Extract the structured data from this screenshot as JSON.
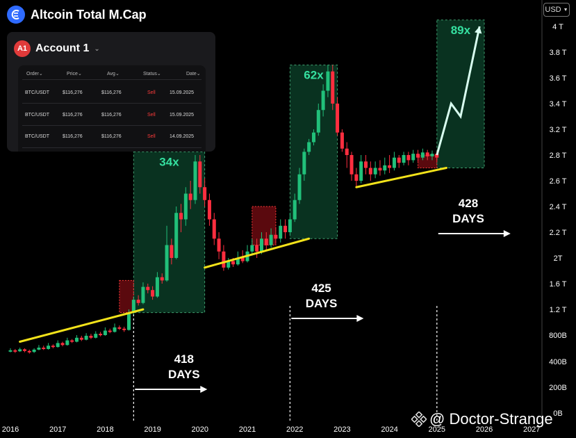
{
  "header": {
    "title": "Altcoin Total M.Cap",
    "logo_icon": "coin-logo-icon"
  },
  "currency_selector": {
    "value": "USD"
  },
  "account_panel": {
    "badge": "A1",
    "account_name": "Account 1",
    "columns": [
      "Order",
      "Price",
      "Avg",
      "Status",
      "Date"
    ],
    "rows": [
      {
        "order": "BTC/USDT",
        "price": "$116,276",
        "avg": "$116,276",
        "status": "Sell",
        "date": "15.09.2025"
      },
      {
        "order": "BTC/USDT",
        "price": "$116,276",
        "avg": "$116,276",
        "status": "Sell",
        "date": "15.09.2025"
      },
      {
        "order": "BTC/USDT",
        "price": "$116,276",
        "avg": "$116,276",
        "status": "Sell",
        "date": "14.09.2025"
      }
    ]
  },
  "watermark": {
    "text": "@ Doctor-Strange",
    "icon": "binance-logo-icon"
  },
  "chart_data": {
    "type": "candlestick",
    "title": "Altcoin Total M.Cap",
    "y_scale": "log",
    "y_unit": "USD",
    "y_ticks": [
      {
        "label": "4 T",
        "value": 4000
      },
      {
        "label": "3.8 T",
        "value": 3800
      },
      {
        "label": "3.6 T",
        "value": 3600
      },
      {
        "label": "3.4 T",
        "value": 3400
      },
      {
        "label": "3.2 T",
        "value": 3200
      },
      {
        "label": "2.8 T",
        "value": 2800
      },
      {
        "label": "2.6 T",
        "value": 2600
      },
      {
        "label": "2.4 T",
        "value": 2400
      },
      {
        "label": "2.2 T",
        "value": 2200
      },
      {
        "label": "2T",
        "value": 2000
      },
      {
        "label": "1.6 T",
        "value": 1600
      },
      {
        "label": "1.2 T",
        "value": 1200
      },
      {
        "label": "800B",
        "value": 800
      },
      {
        "label": "400B",
        "value": 400
      },
      {
        "label": "200B",
        "value": 200
      },
      {
        "label": "0B",
        "value": 0
      }
    ],
    "x_ticks": [
      "2016",
      "2017",
      "2018",
      "2019",
      "2020",
      "2021",
      "2022",
      "2023",
      "2024",
      "2025",
      "2026",
      "2027"
    ],
    "x_range": [
      2015.9,
      2027.5
    ],
    "candles": [
      [
        2016.0,
        560,
        570,
        540,
        600
      ],
      [
        2016.1,
        570,
        555,
        530,
        590
      ],
      [
        2016.2,
        555,
        585,
        545,
        610
      ],
      [
        2016.3,
        585,
        560,
        540,
        600
      ],
      [
        2016.4,
        560,
        545,
        520,
        580
      ],
      [
        2016.5,
        545,
        580,
        530,
        600
      ],
      [
        2016.6,
        580,
        610,
        570,
        650
      ],
      [
        2016.7,
        610,
        590,
        575,
        640
      ],
      [
        2016.8,
        590,
        640,
        580,
        680
      ],
      [
        2016.9,
        640,
        620,
        600,
        660
      ],
      [
        2017.0,
        620,
        680,
        610,
        720
      ],
      [
        2017.1,
        680,
        650,
        630,
        700
      ],
      [
        2017.2,
        650,
        720,
        640,
        760
      ],
      [
        2017.3,
        720,
        700,
        680,
        740
      ],
      [
        2017.4,
        700,
        760,
        690,
        800
      ],
      [
        2017.5,
        760,
        730,
        710,
        790
      ],
      [
        2017.6,
        730,
        790,
        720,
        830
      ],
      [
        2017.7,
        790,
        760,
        740,
        820
      ],
      [
        2017.8,
        760,
        820,
        750,
        860
      ],
      [
        2017.9,
        820,
        800,
        780,
        850
      ],
      [
        2018.0,
        800,
        870,
        790,
        920
      ],
      [
        2018.1,
        870,
        850,
        830,
        900
      ],
      [
        2018.2,
        850,
        920,
        840,
        980
      ],
      [
        2018.3,
        920,
        900,
        880,
        950
      ],
      [
        2018.4,
        900,
        880,
        850,
        930
      ],
      [
        2018.5,
        880,
        1150,
        870,
        1200
      ],
      [
        2018.6,
        1150,
        1350,
        1120,
        1400
      ],
      [
        2018.7,
        1350,
        1300,
        1260,
        1420
      ],
      [
        2018.8,
        1300,
        1550,
        1280,
        1620
      ],
      [
        2018.9,
        1550,
        1500,
        1450,
        1600
      ],
      [
        2019.0,
        1500,
        1400,
        1350,
        1560
      ],
      [
        2019.1,
        1400,
        1700,
        1380,
        1780
      ],
      [
        2019.2,
        1700,
        1650,
        1600,
        1760
      ],
      [
        2019.3,
        1650,
        2100,
        1630,
        2250
      ],
      [
        2019.4,
        2100,
        2000,
        1900,
        2150
      ],
      [
        2019.5,
        2000,
        2350,
        1980,
        2400
      ],
      [
        2019.6,
        2350,
        2300,
        2200,
        2420
      ],
      [
        2019.7,
        2300,
        2500,
        2250,
        2550
      ],
      [
        2019.8,
        2500,
        2450,
        2380,
        2600
      ],
      [
        2019.9,
        2450,
        2750,
        2420,
        2800
      ],
      [
        2020.0,
        2750,
        2550,
        2500,
        2800
      ],
      [
        2020.1,
        2550,
        2450,
        2400,
        2620
      ],
      [
        2020.2,
        2450,
        2300,
        2250,
        2500
      ],
      [
        2020.3,
        2300,
        2150,
        2100,
        2350
      ],
      [
        2020.4,
        2150,
        2050,
        1980,
        2200
      ],
      [
        2020.5,
        2050,
        1850,
        1800,
        2100
      ],
      [
        2020.6,
        1850,
        1950,
        1820,
        2000
      ],
      [
        2020.7,
        1950,
        1900,
        1860,
        2000
      ],
      [
        2020.8,
        1900,
        2000,
        1880,
        2050
      ],
      [
        2020.9,
        2000,
        1950,
        1920,
        2060
      ],
      [
        2021.0,
        1950,
        2050,
        1930,
        2100
      ],
      [
        2021.1,
        2050,
        2100,
        2020,
        2150
      ],
      [
        2021.2,
        2100,
        2050,
        2000,
        2150
      ],
      [
        2021.3,
        2050,
        2150,
        2030,
        2200
      ],
      [
        2021.4,
        2150,
        2100,
        2060,
        2200
      ],
      [
        2021.5,
        2100,
        2180,
        2080,
        2230
      ],
      [
        2021.6,
        2180,
        2150,
        2110,
        2240
      ],
      [
        2021.7,
        2150,
        2250,
        2120,
        2300
      ],
      [
        2021.8,
        2250,
        2200,
        2150,
        2300
      ],
      [
        2021.9,
        2200,
        2300,
        2180,
        2350
      ],
      [
        2022.0,
        2300,
        2450,
        2280,
        2500
      ],
      [
        2022.1,
        2450,
        2650,
        2420,
        2700
      ],
      [
        2022.2,
        2650,
        2850,
        2600,
        2900
      ],
      [
        2022.3,
        2850,
        3000,
        2800,
        3050
      ],
      [
        2022.4,
        3000,
        3150,
        2950,
        3200
      ],
      [
        2022.5,
        3150,
        3350,
        3100,
        3400
      ],
      [
        2022.6,
        3350,
        3500,
        3300,
        3550
      ],
      [
        2022.7,
        3500,
        3650,
        3450,
        3700
      ],
      [
        2022.8,
        3650,
        3400,
        3350,
        3700
      ],
      [
        2022.9,
        3400,
        3150,
        3100,
        3450
      ],
      [
        2023.0,
        3150,
        2900,
        2850,
        3200
      ],
      [
        2023.1,
        2900,
        2800,
        2700,
        3000
      ],
      [
        2023.2,
        2800,
        2650,
        2600,
        2850
      ],
      [
        2023.3,
        2650,
        2600,
        2550,
        2700
      ],
      [
        2023.4,
        2600,
        2750,
        2580,
        2800
      ],
      [
        2023.5,
        2750,
        2700,
        2650,
        2800
      ],
      [
        2023.6,
        2700,
        2650,
        2600,
        2750
      ],
      [
        2023.7,
        2650,
        2700,
        2620,
        2750
      ],
      [
        2023.8,
        2700,
        2680,
        2640,
        2760
      ],
      [
        2023.9,
        2680,
        2720,
        2650,
        2780
      ],
      [
        2024.0,
        2720,
        2700,
        2660,
        2800
      ],
      [
        2024.1,
        2700,
        2780,
        2680,
        2850
      ],
      [
        2024.2,
        2780,
        2740,
        2700,
        2800
      ],
      [
        2024.3,
        2740,
        2800,
        2720,
        2850
      ],
      [
        2024.4,
        2800,
        2760,
        2720,
        2850
      ],
      [
        2024.5,
        2760,
        2820,
        2740,
        2880
      ],
      [
        2024.6,
        2820,
        2780,
        2750,
        2880
      ],
      [
        2024.7,
        2780,
        2840,
        2760,
        2900
      ],
      [
        2024.8,
        2840,
        2790,
        2760,
        2880
      ],
      [
        2024.9,
        2790,
        2820,
        2760,
        2870
      ],
      [
        2025.0,
        2820,
        2780,
        2750,
        2860
      ]
    ],
    "zones": [
      {
        "label": "34x",
        "x0": 2018.6,
        "x1": 2020.1,
        "y_low": 1150,
        "y_high": 2850
      },
      {
        "label": "62x",
        "x0": 2021.9,
        "x1": 2022.9,
        "y_low": 2150,
        "y_high": 3700
      },
      {
        "label": "89x",
        "x0": 2025.0,
        "x1": 2026.0,
        "y_low": 2700,
        "y_high": 4050
      }
    ],
    "consolidation_boxes": [
      {
        "x0": 2018.3,
        "x1": 2018.6,
        "y_low": 1150,
        "y_high": 1650
      },
      {
        "x0": 2021.1,
        "x1": 2021.6,
        "y_low": 2100,
        "y_high": 2400
      },
      {
        "x0": 2024.6,
        "x1": 2025.0,
        "y_low": 2700,
        "y_high": 2800
      }
    ],
    "trendlines": [
      {
        "x0": 2016.2,
        "y0": 700,
        "x1": 2018.8,
        "y1": 1200
      },
      {
        "x0": 2020.1,
        "y0": 1850,
        "x1": 2022.3,
        "y1": 2150
      },
      {
        "x0": 2023.3,
        "y0": 2550,
        "x1": 2025.2,
        "y1": 2700
      }
    ],
    "projection": [
      [
        2025.0,
        2800
      ],
      [
        2025.3,
        3400
      ],
      [
        2025.5,
        3300
      ],
      [
        2025.9,
        4000
      ]
    ],
    "annotations": [
      {
        "line1": "418",
        "line2": "DAYS",
        "x": 2018.9
      },
      {
        "line1": "425",
        "line2": "DAYS",
        "x": 2021.8
      },
      {
        "line1": "428",
        "line2": "DAYS",
        "x": 2024.9
      }
    ],
    "vertical_markers": [
      2018.6,
      2021.9,
      2025.0
    ],
    "legend": "none"
  }
}
